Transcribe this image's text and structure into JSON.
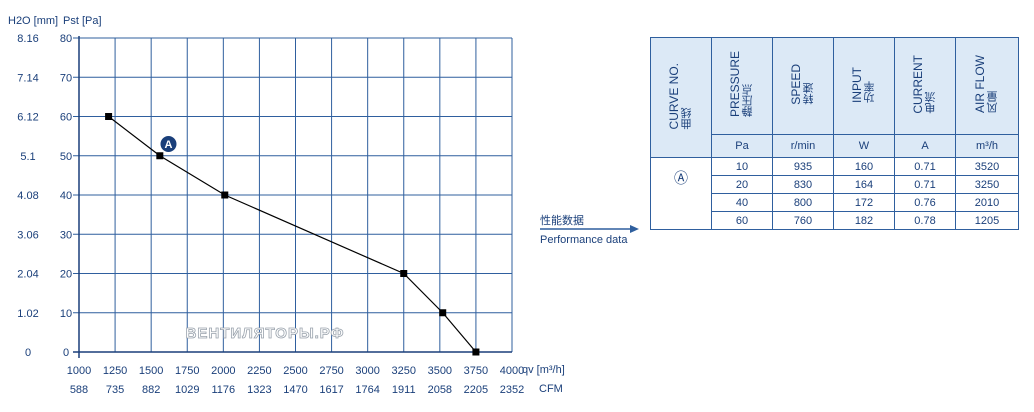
{
  "chart_data": {
    "type": "line",
    "title": "",
    "ylabel_left": "H2O [mm]",
    "ylabel_right": "Pst [Pa]",
    "xlabel_top": "qv [m³/h]",
    "xlabel_bottom": "CFM",
    "xlim": [
      1000,
      4000
    ],
    "ylim": [
      0,
      80
    ],
    "x_ticks": [
      "1000",
      "1250",
      "1500",
      "1750",
      "2000",
      "2250",
      "2500",
      "2750",
      "3000",
      "3250",
      "3500",
      "3750",
      "4000"
    ],
    "x_ticks_cfm": [
      "588",
      "735",
      "882",
      "1029",
      "1176",
      "1323",
      "1470",
      "1617",
      "1764",
      "1911",
      "2058",
      "2205",
      "2352"
    ],
    "y_ticks_pa": [
      "0",
      "10",
      "20",
      "30",
      "40",
      "50",
      "60",
      "70",
      "80"
    ],
    "y_ticks_mm": [
      "0",
      "1.02",
      "2.04",
      "3.06",
      "4.08",
      "5.1",
      "6.12",
      "7.14",
      "8.16"
    ],
    "grid": true,
    "series": [
      {
        "name": "",
        "x": [
          1205,
          1560,
          2010,
          3250,
          3520,
          3750
        ],
        "y": [
          60,
          50,
          40,
          20,
          10,
          0
        ]
      }
    ],
    "curve_marker": "A",
    "marker_position": [
      1620,
      53
    ],
    "watermark": "ВЕНТИЛЯТОРЫ.РФ"
  },
  "colors": {
    "axis": "#1a3f7a",
    "grid": "#2f5f9e",
    "curve": "#000000",
    "marker_fill": "#1a3f7a",
    "arrow": "#2f5f9e"
  },
  "performance": {
    "label_zh": "性能数据",
    "label_en": "Performance data"
  },
  "table": {
    "headers": [
      {
        "en": "CURVE NO.",
        "zh": "曲线",
        "unit": ""
      },
      {
        "en": "PRESSURE",
        "zh": "静压点",
        "unit": "Pa"
      },
      {
        "en": "SPEED",
        "zh": "转速",
        "unit": "r/min"
      },
      {
        "en": "INPUT",
        "zh": "功率",
        "unit": "W"
      },
      {
        "en": "CURRENT",
        "zh": "电流",
        "unit": "A"
      },
      {
        "en": "AIR FLOW",
        "zh": "风量",
        "unit": "m³/h"
      }
    ],
    "curve_label": "Ⓐ",
    "rows": [
      [
        "10",
        "935",
        "160",
        "0.71",
        "3520"
      ],
      [
        "20",
        "830",
        "164",
        "0.71",
        "3250"
      ],
      [
        "40",
        "800",
        "172",
        "0.76",
        "2010"
      ],
      [
        "60",
        "760",
        "182",
        "0.78",
        "1205"
      ]
    ]
  }
}
